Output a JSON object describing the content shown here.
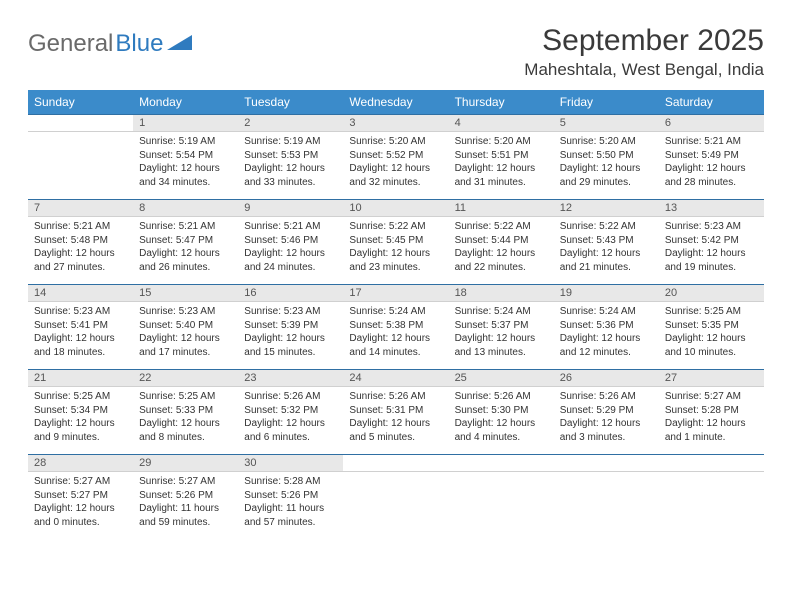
{
  "logo": {
    "part1": "General",
    "part2": "Blue"
  },
  "title": "September 2025",
  "location": "Maheshtala, West Bengal, India",
  "colors": {
    "header_bg": "#3b8bca",
    "header_text": "#ffffff",
    "daynum_bg": "#e8e8e8",
    "daynum_border_top": "#2f6fa3",
    "text": "#333333",
    "title_text": "#3a3a3a",
    "logo_gray": "#6a6a6a",
    "logo_blue": "#2f7bbf"
  },
  "day_headers": [
    "Sunday",
    "Monday",
    "Tuesday",
    "Wednesday",
    "Thursday",
    "Friday",
    "Saturday"
  ],
  "weeks": [
    {
      "nums": [
        "",
        "1",
        "2",
        "3",
        "4",
        "5",
        "6"
      ],
      "cells": [
        null,
        {
          "sunrise": "Sunrise: 5:19 AM",
          "sunset": "Sunset: 5:54 PM",
          "day1": "Daylight: 12 hours",
          "day2": "and 34 minutes."
        },
        {
          "sunrise": "Sunrise: 5:19 AM",
          "sunset": "Sunset: 5:53 PM",
          "day1": "Daylight: 12 hours",
          "day2": "and 33 minutes."
        },
        {
          "sunrise": "Sunrise: 5:20 AM",
          "sunset": "Sunset: 5:52 PM",
          "day1": "Daylight: 12 hours",
          "day2": "and 32 minutes."
        },
        {
          "sunrise": "Sunrise: 5:20 AM",
          "sunset": "Sunset: 5:51 PM",
          "day1": "Daylight: 12 hours",
          "day2": "and 31 minutes."
        },
        {
          "sunrise": "Sunrise: 5:20 AM",
          "sunset": "Sunset: 5:50 PM",
          "day1": "Daylight: 12 hours",
          "day2": "and 29 minutes."
        },
        {
          "sunrise": "Sunrise: 5:21 AM",
          "sunset": "Sunset: 5:49 PM",
          "day1": "Daylight: 12 hours",
          "day2": "and 28 minutes."
        }
      ]
    },
    {
      "nums": [
        "7",
        "8",
        "9",
        "10",
        "11",
        "12",
        "13"
      ],
      "cells": [
        {
          "sunrise": "Sunrise: 5:21 AM",
          "sunset": "Sunset: 5:48 PM",
          "day1": "Daylight: 12 hours",
          "day2": "and 27 minutes."
        },
        {
          "sunrise": "Sunrise: 5:21 AM",
          "sunset": "Sunset: 5:47 PM",
          "day1": "Daylight: 12 hours",
          "day2": "and 26 minutes."
        },
        {
          "sunrise": "Sunrise: 5:21 AM",
          "sunset": "Sunset: 5:46 PM",
          "day1": "Daylight: 12 hours",
          "day2": "and 24 minutes."
        },
        {
          "sunrise": "Sunrise: 5:22 AM",
          "sunset": "Sunset: 5:45 PM",
          "day1": "Daylight: 12 hours",
          "day2": "and 23 minutes."
        },
        {
          "sunrise": "Sunrise: 5:22 AM",
          "sunset": "Sunset: 5:44 PM",
          "day1": "Daylight: 12 hours",
          "day2": "and 22 minutes."
        },
        {
          "sunrise": "Sunrise: 5:22 AM",
          "sunset": "Sunset: 5:43 PM",
          "day1": "Daylight: 12 hours",
          "day2": "and 21 minutes."
        },
        {
          "sunrise": "Sunrise: 5:23 AM",
          "sunset": "Sunset: 5:42 PM",
          "day1": "Daylight: 12 hours",
          "day2": "and 19 minutes."
        }
      ]
    },
    {
      "nums": [
        "14",
        "15",
        "16",
        "17",
        "18",
        "19",
        "20"
      ],
      "cells": [
        {
          "sunrise": "Sunrise: 5:23 AM",
          "sunset": "Sunset: 5:41 PM",
          "day1": "Daylight: 12 hours",
          "day2": "and 18 minutes."
        },
        {
          "sunrise": "Sunrise: 5:23 AM",
          "sunset": "Sunset: 5:40 PM",
          "day1": "Daylight: 12 hours",
          "day2": "and 17 minutes."
        },
        {
          "sunrise": "Sunrise: 5:23 AM",
          "sunset": "Sunset: 5:39 PM",
          "day1": "Daylight: 12 hours",
          "day2": "and 15 minutes."
        },
        {
          "sunrise": "Sunrise: 5:24 AM",
          "sunset": "Sunset: 5:38 PM",
          "day1": "Daylight: 12 hours",
          "day2": "and 14 minutes."
        },
        {
          "sunrise": "Sunrise: 5:24 AM",
          "sunset": "Sunset: 5:37 PM",
          "day1": "Daylight: 12 hours",
          "day2": "and 13 minutes."
        },
        {
          "sunrise": "Sunrise: 5:24 AM",
          "sunset": "Sunset: 5:36 PM",
          "day1": "Daylight: 12 hours",
          "day2": "and 12 minutes."
        },
        {
          "sunrise": "Sunrise: 5:25 AM",
          "sunset": "Sunset: 5:35 PM",
          "day1": "Daylight: 12 hours",
          "day2": "and 10 minutes."
        }
      ]
    },
    {
      "nums": [
        "21",
        "22",
        "23",
        "24",
        "25",
        "26",
        "27"
      ],
      "cells": [
        {
          "sunrise": "Sunrise: 5:25 AM",
          "sunset": "Sunset: 5:34 PM",
          "day1": "Daylight: 12 hours",
          "day2": "and 9 minutes."
        },
        {
          "sunrise": "Sunrise: 5:25 AM",
          "sunset": "Sunset: 5:33 PM",
          "day1": "Daylight: 12 hours",
          "day2": "and 8 minutes."
        },
        {
          "sunrise": "Sunrise: 5:26 AM",
          "sunset": "Sunset: 5:32 PM",
          "day1": "Daylight: 12 hours",
          "day2": "and 6 minutes."
        },
        {
          "sunrise": "Sunrise: 5:26 AM",
          "sunset": "Sunset: 5:31 PM",
          "day1": "Daylight: 12 hours",
          "day2": "and 5 minutes."
        },
        {
          "sunrise": "Sunrise: 5:26 AM",
          "sunset": "Sunset: 5:30 PM",
          "day1": "Daylight: 12 hours",
          "day2": "and 4 minutes."
        },
        {
          "sunrise": "Sunrise: 5:26 AM",
          "sunset": "Sunset: 5:29 PM",
          "day1": "Daylight: 12 hours",
          "day2": "and 3 minutes."
        },
        {
          "sunrise": "Sunrise: 5:27 AM",
          "sunset": "Sunset: 5:28 PM",
          "day1": "Daylight: 12 hours",
          "day2": "and 1 minute."
        }
      ]
    },
    {
      "nums": [
        "28",
        "29",
        "30",
        "",
        "",
        "",
        ""
      ],
      "cells": [
        {
          "sunrise": "Sunrise: 5:27 AM",
          "sunset": "Sunset: 5:27 PM",
          "day1": "Daylight: 12 hours",
          "day2": "and 0 minutes."
        },
        {
          "sunrise": "Sunrise: 5:27 AM",
          "sunset": "Sunset: 5:26 PM",
          "day1": "Daylight: 11 hours",
          "day2": "and 59 minutes."
        },
        {
          "sunrise": "Sunrise: 5:28 AM",
          "sunset": "Sunset: 5:26 PM",
          "day1": "Daylight: 11 hours",
          "day2": "and 57 minutes."
        },
        null,
        null,
        null,
        null
      ]
    }
  ]
}
